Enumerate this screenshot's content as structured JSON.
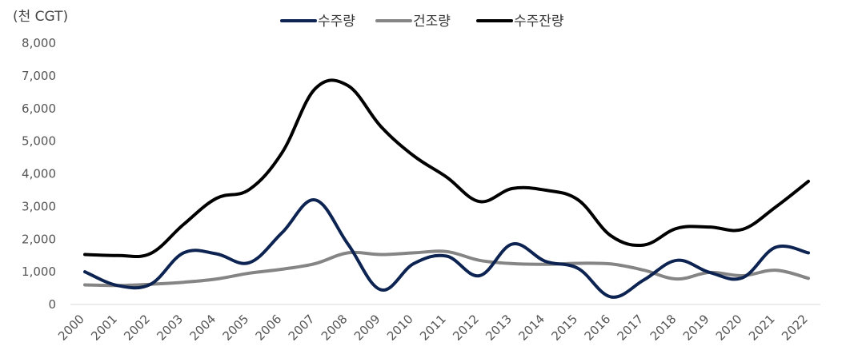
{
  "chart_data": {
    "type": "line",
    "title": "",
    "unit_label": "(천 CGT)",
    "xlabel": "",
    "ylabel": "",
    "categories": [
      "2000",
      "2001",
      "2002",
      "2003",
      "2004",
      "2005",
      "2006",
      "2007",
      "2008",
      "2009",
      "2010",
      "2011",
      "2012",
      "2013",
      "2014",
      "2015",
      "2016",
      "2017",
      "2018",
      "2019",
      "2020",
      "2021",
      "2022"
    ],
    "yticks": [
      "0",
      "1,000",
      "2,000",
      "3,000",
      "4,000",
      "5,000",
      "6,000",
      "7,000",
      "8,000"
    ],
    "ylim": [
      0,
      8000
    ],
    "grid": false,
    "legend_position": "top-center",
    "series": [
      {
        "name": "수주량",
        "color": "#0d2452",
        "values": [
          1000,
          580,
          620,
          1580,
          1550,
          1280,
          2200,
          3200,
          1850,
          450,
          1250,
          1480,
          880,
          1850,
          1320,
          1100,
          230,
          750,
          1350,
          980,
          820,
          1750,
          1580
        ]
      },
      {
        "name": "건조량",
        "color": "#858585",
        "values": [
          600,
          580,
          620,
          680,
          780,
          960,
          1080,
          1250,
          1580,
          1530,
          1580,
          1620,
          1350,
          1250,
          1230,
          1260,
          1240,
          1050,
          780,
          980,
          880,
          1050,
          800
        ]
      },
      {
        "name": "수주잔량",
        "color": "#000000",
        "values": [
          1530,
          1500,
          1560,
          2450,
          3250,
          3520,
          4650,
          6600,
          6700,
          5450,
          4550,
          3900,
          3150,
          3550,
          3500,
          3200,
          2100,
          1820,
          2330,
          2370,
          2300,
          2980,
          3770
        ]
      }
    ]
  }
}
